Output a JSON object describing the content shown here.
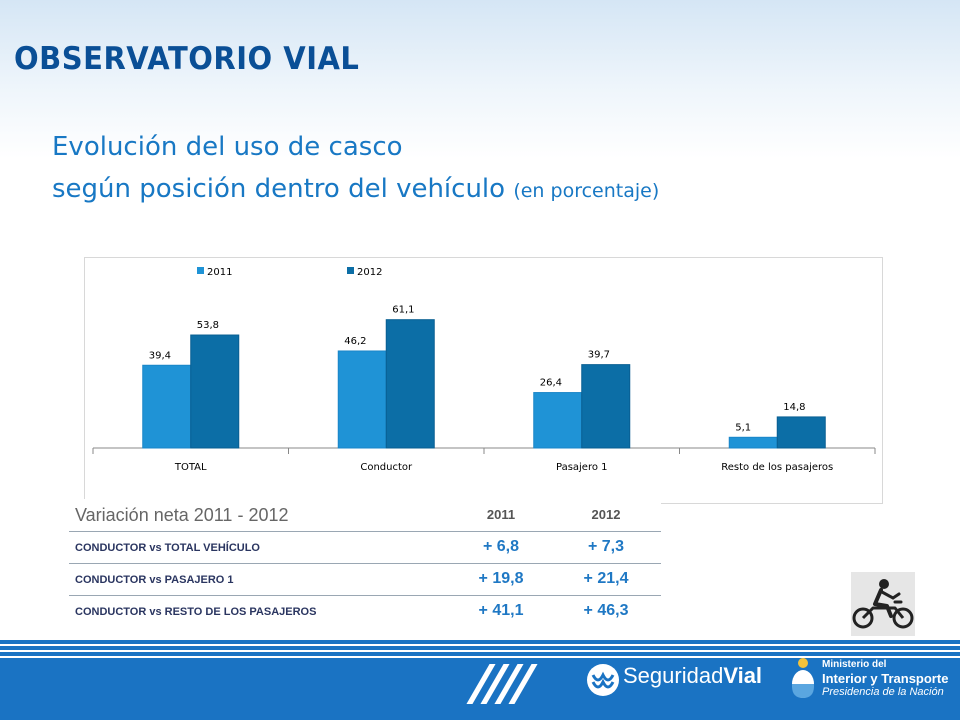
{
  "header": {
    "brand": "OBSERVATORIO VIAL"
  },
  "title": {
    "line1": "Evolución del uso de casco",
    "line2": "según posición dentro del vehículo",
    "unit": "(en porcentaje)"
  },
  "chart_data": {
    "type": "bar",
    "categories": [
      "TOTAL",
      "Conductor",
      "Pasajero 1",
      "Resto de los pasajeros"
    ],
    "series": [
      {
        "name": "2011",
        "color": "#1f93d6",
        "values": [
          39.4,
          46.2,
          26.4,
          5.1
        ],
        "labels": [
          "39,4",
          "46,2",
          "26,4",
          "5,1"
        ]
      },
      {
        "name": "2012",
        "color": "#0c6ea6",
        "values": [
          53.8,
          61.1,
          39.7,
          14.8
        ],
        "labels": [
          "53,8",
          "61,1",
          "39,7",
          "14,8"
        ]
      }
    ],
    "legend": "top-left",
    "grid": false,
    "ylim": [
      0,
      70
    ]
  },
  "variation": {
    "title": "Variación neta 2011 - 2012",
    "columns": [
      "2011",
      "2012"
    ],
    "rows": [
      {
        "label": "CONDUCTOR vs TOTAL VEHÍCULO",
        "v2011": "+ 6,8",
        "v2012": "+ 7,3"
      },
      {
        "label": "CONDUCTOR vs PASAJERO 1",
        "v2011": "+ 19,8",
        "v2012": "+ 21,4"
      },
      {
        "label": "CONDUCTOR vs RESTO DE LOS PASAJEROS",
        "v2011": "+ 41,1",
        "v2012": "+ 46,3"
      }
    ]
  },
  "icons": {
    "moto": "motorcycle-helmet-icon"
  },
  "footer": {
    "seguridad_a": "Seguridad",
    "seguridad_b": "Vial",
    "ministry_1": "Ministerio del",
    "ministry_2": "Interior y Transporte",
    "ministry_3": "Presidencia de la Nación"
  },
  "colors": {
    "brand_blue": "#0a4f96",
    "title_blue": "#1878c4",
    "footer_blue": "#1a73c3"
  }
}
